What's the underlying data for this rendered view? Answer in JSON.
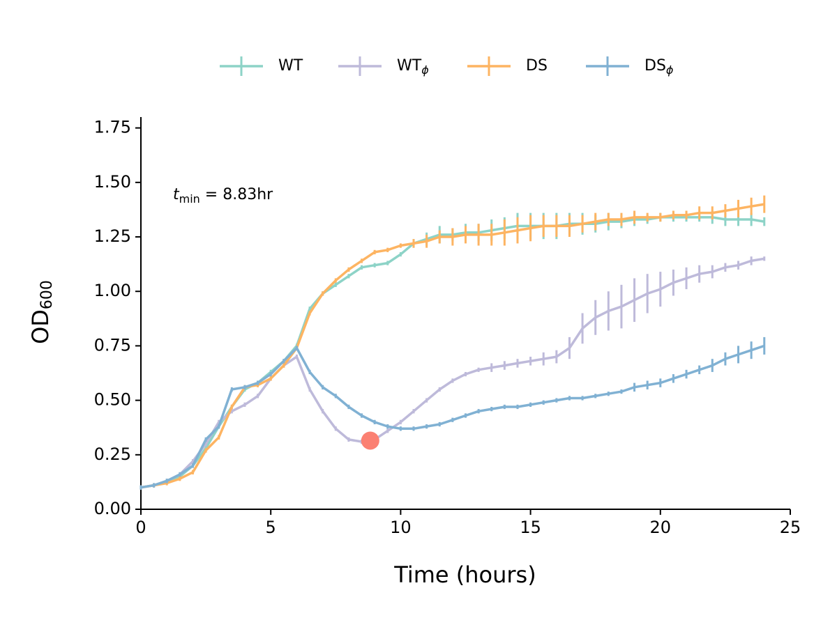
{
  "chart_data": {
    "type": "line",
    "xlabel": "Time (hours)",
    "ylabel": "OD",
    "ylabel_sub": "600",
    "annotation": {
      "t": "t",
      "sub": "min",
      "text": " = 8.83hr"
    },
    "marker": {
      "x": 8.83,
      "y": 0.315,
      "color": "#fb8072"
    },
    "xlim": [
      0,
      25
    ],
    "xticks": [
      0,
      5,
      10,
      15,
      20,
      25
    ],
    "ylim": [
      0,
      1.8
    ],
    "yticks": [
      {
        "value": 0,
        "label": "0.00"
      },
      {
        "value": 0.25,
        "label": "0.25"
      },
      {
        "value": 0.5,
        "label": "0.50"
      },
      {
        "value": 0.75,
        "label": "0.75"
      },
      {
        "value": 1,
        "label": "1.00"
      },
      {
        "value": 1.25,
        "label": "1.25"
      },
      {
        "value": 1.5,
        "label": "1.50"
      },
      {
        "value": 1.75,
        "label": "1.75"
      }
    ],
    "legend": "top",
    "x": [
      0,
      0.5,
      1,
      1.5,
      2,
      2.5,
      3,
      3.5,
      4,
      4.5,
      5,
      5.5,
      6,
      6.5,
      7,
      7.5,
      8,
      8.5,
      9,
      9.5,
      10,
      10.5,
      11,
      11.5,
      12,
      12.5,
      13,
      13.5,
      14,
      14.5,
      15,
      15.5,
      16,
      16.5,
      17,
      17.5,
      18,
      18.5,
      19,
      19.5,
      20,
      20.5,
      21,
      21.5,
      22,
      22.5,
      23,
      23.5,
      24
    ],
    "series": [
      {
        "name": "WT",
        "color": "#8dd3c7",
        "values": [
          0.1,
          0.11,
          0.13,
          0.15,
          0.2,
          0.28,
          0.38,
          0.47,
          0.55,
          0.58,
          0.63,
          0.68,
          0.75,
          0.92,
          0.99,
          1.03,
          1.07,
          1.11,
          1.12,
          1.13,
          1.17,
          1.22,
          1.24,
          1.26,
          1.26,
          1.27,
          1.27,
          1.28,
          1.29,
          1.3,
          1.3,
          1.3,
          1.3,
          1.31,
          1.31,
          1.31,
          1.32,
          1.32,
          1.33,
          1.33,
          1.34,
          1.34,
          1.34,
          1.34,
          1.34,
          1.33,
          1.33,
          1.33,
          1.32
        ],
        "errors": [
          0.01,
          0.01,
          0.01,
          0.01,
          0.01,
          0.01,
          0.01,
          0.01,
          0.01,
          0.01,
          0.01,
          0.01,
          0.01,
          0.01,
          0.01,
          0.01,
          0.01,
          0.01,
          0.01,
          0.01,
          0.01,
          0.02,
          0.03,
          0.04,
          0.03,
          0.04,
          0.04,
          0.05,
          0.05,
          0.06,
          0.06,
          0.06,
          0.06,
          0.05,
          0.05,
          0.04,
          0.04,
          0.03,
          0.03,
          0.02,
          0.02,
          0.02,
          0.02,
          0.02,
          0.03,
          0.03,
          0.03,
          0.03,
          0.02
        ]
      },
      {
        "name": "WT",
        "name_sub": "ϕ",
        "color": "#bebada",
        "values": [
          0.1,
          0.11,
          0.13,
          0.16,
          0.22,
          0.3,
          0.4,
          0.45,
          0.48,
          0.52,
          0.6,
          0.66,
          0.7,
          0.55,
          0.45,
          0.37,
          0.32,
          0.31,
          0.32,
          0.36,
          0.4,
          0.45,
          0.5,
          0.55,
          0.59,
          0.62,
          0.64,
          0.65,
          0.66,
          0.67,
          0.68,
          0.69,
          0.7,
          0.74,
          0.83,
          0.88,
          0.91,
          0.93,
          0.96,
          0.99,
          1.01,
          1.04,
          1.06,
          1.08,
          1.09,
          1.11,
          1.12,
          1.14,
          1.15
        ],
        "errors": [
          0.01,
          0.01,
          0.01,
          0.01,
          0.01,
          0.01,
          0.01,
          0.01,
          0.01,
          0.01,
          0.01,
          0.01,
          0.01,
          0.01,
          0.01,
          0.01,
          0.01,
          0.01,
          0.01,
          0.01,
          0.01,
          0.01,
          0.01,
          0.01,
          0.01,
          0.01,
          0.01,
          0.02,
          0.02,
          0.02,
          0.02,
          0.03,
          0.03,
          0.05,
          0.07,
          0.08,
          0.09,
          0.1,
          0.1,
          0.09,
          0.08,
          0.06,
          0.05,
          0.04,
          0.03,
          0.02,
          0.02,
          0.02,
          0.01
        ]
      },
      {
        "name": "DS",
        "color": "#fdb462",
        "values": [
          0.1,
          0.11,
          0.12,
          0.14,
          0.17,
          0.27,
          0.33,
          0.47,
          0.56,
          0.57,
          0.6,
          0.66,
          0.74,
          0.9,
          0.99,
          1.05,
          1.1,
          1.14,
          1.18,
          1.19,
          1.21,
          1.22,
          1.23,
          1.25,
          1.25,
          1.26,
          1.26,
          1.26,
          1.27,
          1.28,
          1.29,
          1.3,
          1.3,
          1.3,
          1.31,
          1.32,
          1.33,
          1.33,
          1.34,
          1.34,
          1.34,
          1.35,
          1.35,
          1.36,
          1.36,
          1.37,
          1.38,
          1.39,
          1.4
        ],
        "errors": [
          0.01,
          0.01,
          0.01,
          0.01,
          0.01,
          0.01,
          0.01,
          0.01,
          0.01,
          0.01,
          0.01,
          0.01,
          0.01,
          0.01,
          0.01,
          0.01,
          0.01,
          0.01,
          0.01,
          0.01,
          0.01,
          0.02,
          0.03,
          0.03,
          0.04,
          0.04,
          0.05,
          0.05,
          0.06,
          0.06,
          0.06,
          0.05,
          0.05,
          0.05,
          0.04,
          0.04,
          0.03,
          0.03,
          0.03,
          0.02,
          0.02,
          0.02,
          0.02,
          0.03,
          0.03,
          0.03,
          0.04,
          0.04,
          0.04
        ]
      },
      {
        "name": "DS",
        "name_sub": "ϕ",
        "color": "#80b1d3",
        "values": [
          0.1,
          0.11,
          0.13,
          0.16,
          0.2,
          0.32,
          0.38,
          0.55,
          0.56,
          0.58,
          0.62,
          0.68,
          0.74,
          0.63,
          0.56,
          0.52,
          0.47,
          0.43,
          0.4,
          0.38,
          0.37,
          0.37,
          0.38,
          0.39,
          0.41,
          0.43,
          0.45,
          0.46,
          0.47,
          0.47,
          0.48,
          0.49,
          0.5,
          0.51,
          0.51,
          0.52,
          0.53,
          0.54,
          0.56,
          0.57,
          0.58,
          0.6,
          0.62,
          0.64,
          0.66,
          0.69,
          0.71,
          0.73,
          0.75
        ],
        "errors": [
          0.01,
          0.01,
          0.01,
          0.01,
          0.01,
          0.01,
          0.01,
          0.01,
          0.01,
          0.01,
          0.01,
          0.01,
          0.01,
          0.01,
          0.01,
          0.01,
          0.01,
          0.01,
          0.01,
          0.01,
          0.01,
          0.01,
          0.01,
          0.01,
          0.01,
          0.01,
          0.01,
          0.01,
          0.01,
          0.01,
          0.01,
          0.01,
          0.01,
          0.01,
          0.01,
          0.01,
          0.01,
          0.01,
          0.02,
          0.02,
          0.02,
          0.02,
          0.02,
          0.02,
          0.03,
          0.03,
          0.04,
          0.04,
          0.04
        ]
      }
    ]
  }
}
